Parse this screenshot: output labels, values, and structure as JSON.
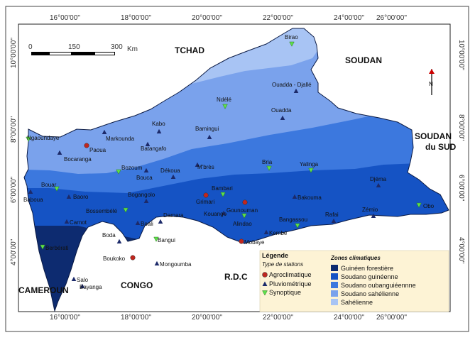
{
  "countries": [
    {
      "name": "TCHAD"
    },
    {
      "name": "SOUDAN"
    },
    {
      "name": "SOUDAN"
    },
    {
      "name": "du SUD"
    },
    {
      "name": "R.D.C"
    },
    {
      "name": "CONGO"
    },
    {
      "name": "CAMEROUN"
    }
  ],
  "coords_top": [
    "16°00'00''",
    "18°00'00''",
    "20°00'00''",
    "22°00'00''",
    "24°00'00''",
    "26°00'00''"
  ],
  "coords_bottom": [
    "16°00'00''",
    "18°00'00''",
    "20°00'00''",
    "22°00'00''",
    "24°00'00''",
    "26°00'00''"
  ],
  "coords_left": [
    "10°00'00''",
    "8°00'00''",
    "6°00'00''",
    "4°00'00''"
  ],
  "coords_right": [
    "10°00'00''",
    "8°00'00''",
    "6°00'00''",
    "4°00'00''"
  ],
  "scale": {
    "labels": [
      "0",
      "150",
      "300"
    ],
    "unit": "Km"
  },
  "north_label": "N",
  "legend": {
    "title": "Légende",
    "stations_title": "Type de stations",
    "stations": [
      {
        "label": "Agroclimatique",
        "type": "agro",
        "color": "#c0261e"
      },
      {
        "label": "Pluviométrique",
        "type": "pluvio",
        "color": "#1c2a6a"
      },
      {
        "label": "Synoptique",
        "type": "synop",
        "color": "#5fe04a"
      }
    ],
    "zones_title": "Zones climatiques",
    "zones": [
      {
        "label": "Guinéen forestière",
        "color": "#0d2b70"
      },
      {
        "label": "Soudano guinéenne",
        "color": "#1553c4"
      },
      {
        "label": "Soudano oubanguiéennne",
        "color": "#3c78de"
      },
      {
        "label": "Soudano sahélienne",
        "color": "#7aa2ec"
      },
      {
        "label": "Sahélienne",
        "color": "#a8c4f4"
      }
    ]
  },
  "stations": [
    {
      "name": "Birao",
      "type": "synop"
    },
    {
      "name": "Ouadda - Djallé",
      "type": "pluvio"
    },
    {
      "name": "Ndélé",
      "type": "synop"
    },
    {
      "name": "Ouadda",
      "type": "pluvio"
    },
    {
      "name": "Kabo",
      "type": "pluvio"
    },
    {
      "name": "Markounda",
      "type": "pluvio"
    },
    {
      "name": "Bamingui",
      "type": "pluvio"
    },
    {
      "name": "Ngaoundaye",
      "type": "synop"
    },
    {
      "name": "Paoua",
      "type": "agro"
    },
    {
      "name": "Batangafo",
      "type": "pluvio"
    },
    {
      "name": "Bocaranga",
      "type": "pluvio"
    },
    {
      "name": "Bozoum",
      "type": "synop"
    },
    {
      "name": "Bouca",
      "type": "pluvio"
    },
    {
      "name": "Dékoua",
      "type": "pluvio"
    },
    {
      "name": "M'brès",
      "type": "pluvio"
    },
    {
      "name": "Bria",
      "type": "synop"
    },
    {
      "name": "Yalinga",
      "type": "synop"
    },
    {
      "name": "Djéma",
      "type": "pluvio"
    },
    {
      "name": "Bouar",
      "type": "synop"
    },
    {
      "name": "Baboua",
      "type": "pluvio"
    },
    {
      "name": "Baoro",
      "type": "pluvio"
    },
    {
      "name": "Bogangolo",
      "type": "pluvio"
    },
    {
      "name": "Bambari",
      "type": "synop"
    },
    {
      "name": "Grimari",
      "type": "agro"
    },
    {
      "name": "Bakouma",
      "type": "pluvio"
    },
    {
      "name": "Bossembélé",
      "type": "synop"
    },
    {
      "name": "Gounouman",
      "type": "agro"
    },
    {
      "name": "Kouango",
      "type": "pluvio"
    },
    {
      "name": "Obo",
      "type": "synop"
    },
    {
      "name": "Rafai",
      "type": "pluvio"
    },
    {
      "name": "Zémio",
      "type": "pluvio"
    },
    {
      "name": "Bangassou",
      "type": "synop"
    },
    {
      "name": "Carnot",
      "type": "pluvio"
    },
    {
      "name": "Boali",
      "type": "pluvio"
    },
    {
      "name": "Damara",
      "type": "pluvio"
    },
    {
      "name": "Alindao",
      "type": "synop"
    },
    {
      "name": "Kembé",
      "type": "pluvio"
    },
    {
      "name": "Boda",
      "type": "pluvio"
    },
    {
      "name": "Bangui",
      "type": "synop"
    },
    {
      "name": "Mobaye",
      "type": "agro"
    },
    {
      "name": "Berbérati",
      "type": "synop"
    },
    {
      "name": "Boukoko",
      "type": "agro"
    },
    {
      "name": "Mongoumba",
      "type": "pluvio"
    },
    {
      "name": "Salo",
      "type": "pluvio"
    },
    {
      "name": "Bayanga",
      "type": "pluvio"
    }
  ]
}
